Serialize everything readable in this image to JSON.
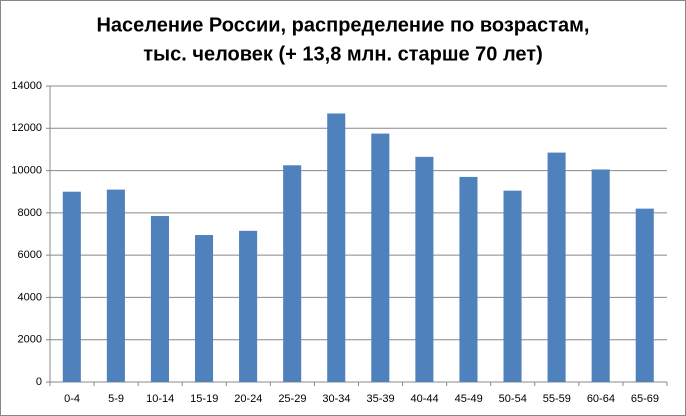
{
  "chart_data": {
    "type": "bar",
    "title": [
      "Население России, распределение по возрастам,",
      "тыс. человек (+ 13,8 млн. старше 70 лет)"
    ],
    "categories": [
      "0-4",
      "5-9",
      "10-14",
      "15-19",
      "20-24",
      "25-29",
      "30-34",
      "35-39",
      "40-44",
      "45-49",
      "50-54",
      "55-59",
      "60-64",
      "65-69"
    ],
    "values": [
      9000,
      9100,
      7850,
      6950,
      7150,
      10250,
      12700,
      11750,
      10650,
      9700,
      9050,
      10850,
      10050,
      8200
    ],
    "color": "#4f81bd",
    "ylim": [
      0,
      14000
    ],
    "yticks": [
      0,
      2000,
      4000,
      6000,
      8000,
      10000,
      12000,
      14000
    ],
    "grid": true
  }
}
